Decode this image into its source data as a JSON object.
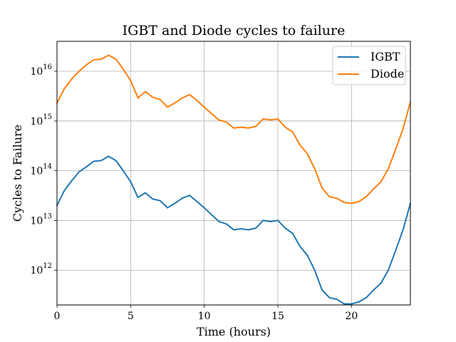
{
  "chart_data": {
    "type": "line",
    "title": "IGBT and Diode cycles to failure",
    "xlabel": "Time (hours)",
    "ylabel": "Cycles to Failure",
    "xlim": [
      0,
      24
    ],
    "ylim": [
      200000000000.0,
      4e+16
    ],
    "yscale": "log",
    "grid": true,
    "legend_position": "top-right",
    "x_ticks": [
      {
        "value": 0,
        "label": "0"
      },
      {
        "value": 5,
        "label": "5"
      },
      {
        "value": 10,
        "label": "10"
      },
      {
        "value": 15,
        "label": "15"
      },
      {
        "value": 20,
        "label": "20"
      }
    ],
    "y_ticks": [
      {
        "value": 1000000000000.0,
        "base": "10",
        "exp": "12"
      },
      {
        "value": 10000000000000.0,
        "base": "10",
        "exp": "13"
      },
      {
        "value": 100000000000000.0,
        "base": "10",
        "exp": "14"
      },
      {
        "value": 1000000000000000.0,
        "base": "10",
        "exp": "15"
      },
      {
        "value": 1e+16,
        "base": "10",
        "exp": "16"
      }
    ],
    "x": [
      0,
      0.5,
      1,
      1.5,
      2,
      2.5,
      3,
      3.5,
      4,
      4.5,
      5,
      5.5,
      6,
      6.5,
      7,
      7.5,
      8,
      8.5,
      9,
      9.5,
      10,
      10.5,
      11,
      11.5,
      12,
      12.5,
      13,
      13.5,
      14,
      14.5,
      15,
      15.5,
      16,
      16.5,
      17,
      17.5,
      18,
      18.5,
      19,
      19.5,
      20,
      20.5,
      21,
      21.5,
      22,
      22.5,
      23,
      23.5,
      24
    ],
    "series": [
      {
        "name": "IGBT",
        "color": "#1f77b4",
        "values": [
          20000000000000.0,
          40000000000000.0,
          63000000000000.0,
          95000000000000.0,
          120000000000000.0,
          155000000000000.0,
          160000000000000.0,
          195000000000000.0,
          160000000000000.0,
          100000000000000.0,
          60000000000000.0,
          29000000000000.0,
          36000000000000.0,
          27000000000000.0,
          25000000000000.0,
          18000000000000.0,
          22000000000000.0,
          28000000000000.0,
          32000000000000.0,
          24000000000000.0,
          18000000000000.0,
          13000000000000.0,
          9500000000000.0,
          8500000000000.0,
          6500000000000.0,
          6800000000000.0,
          6500000000000.0,
          7000000000000.0,
          10000000000000.0,
          9500000000000.0,
          10000000000000.0,
          7000000000000.0,
          5500000000000.0,
          3000000000000.0,
          2000000000000.0,
          1000000000000.0,
          400000000000.0,
          280000000000.0,
          260000000000.0,
          210000000000.0,
          210000000000.0,
          230000000000.0,
          280000000000.0,
          400000000000.0,
          550000000000.0,
          1000000000000.0,
          2500000000000.0,
          6500000000000.0,
          22000000000000.0
        ]
      },
      {
        "name": "Diode",
        "color": "#ff7f0e",
        "values": [
          2300000000000000.0,
          4500000000000000.0,
          7000000000000000.0,
          1e+16,
          1.35e+16,
          1.7e+16,
          1.75e+16,
          2.1e+16,
          1.75e+16,
          1.1e+16,
          6500000000000000.0,
          2900000000000000.0,
          3900000000000000.0,
          3000000000000000.0,
          2700000000000000.0,
          1900000000000000.0,
          2300000000000000.0,
          2900000000000000.0,
          3400000000000000.0,
          2600000000000000.0,
          1900000000000000.0,
          1400000000000000.0,
          1050000000000000.0,
          950000000000000.0,
          720000000000000.0,
          750000000000000.0,
          720000000000000.0,
          780000000000000.0,
          1100000000000000.0,
          1050000000000000.0,
          1100000000000000.0,
          750000000000000.0,
          600000000000000.0,
          330000000000000.0,
          220000000000000.0,
          110000000000000.0,
          45000000000000.0,
          30000000000000.0,
          28000000000000.0,
          23000000000000.0,
          22000000000000.0,
          24000000000000.0,
          30000000000000.0,
          43000000000000.0,
          60000000000000.0,
          110000000000000.0,
          270000000000000.0,
          700000000000000.0,
          2400000000000000.0
        ]
      }
    ]
  }
}
